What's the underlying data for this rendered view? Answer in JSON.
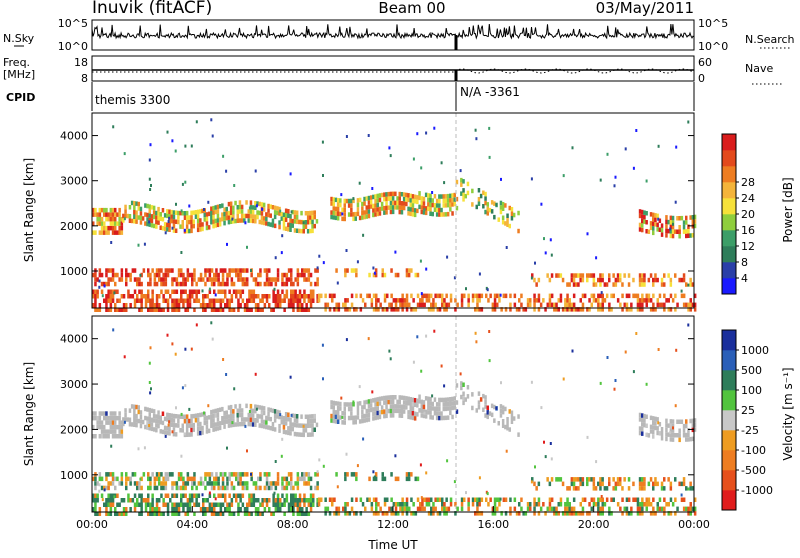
{
  "header": {
    "station": "Inuvik (fitACF)",
    "beam": "Beam 00",
    "date": "03/May/2011"
  },
  "top_panels": {
    "nsky_label": "N.Sky",
    "nsky_ticks": [
      "10^5",
      "10^0"
    ],
    "nsearch_label": "N.Search",
    "freq_label_1": "Freq.",
    "freq_label_2": "[MHz]",
    "freq_ticks": [
      "18",
      "8"
    ],
    "nave_label": "Nave",
    "nave_ticks": [
      "60",
      "0"
    ],
    "cpid_label": "CPID",
    "cpid_segments": [
      "themis 3300",
      "N/A -3361"
    ]
  },
  "colors": {
    "power_scale": [
      "#1a1aff",
      "#2a3fa8",
      "#2e7d5a",
      "#3c9e68",
      "#8fce3d",
      "#f6e13a",
      "#f4b43a",
      "#ee7d21",
      "#e34a1c",
      "#d91c1c"
    ],
    "velocity_scale": [
      "#1a2f9c",
      "#2a5fb8",
      "#2e7d5a",
      "#52c43e",
      "#c8c8c8",
      "#c8c8c8",
      "#ee9c21",
      "#ee7d21",
      "#e6501c",
      "#e01c1c"
    ],
    "ground_scatter": "#b8b8b8"
  },
  "chart_data": [
    {
      "type": "heatmap",
      "name": "power",
      "ylabel": "Slant Range [km]",
      "xlabel": "",
      "yticks": [
        "1000",
        "2000",
        "3000",
        "4000"
      ],
      "colorbar_label": "Power [dB]",
      "colorbar_ticks": [
        "4",
        "8",
        "12",
        "16",
        "20",
        "24",
        "28"
      ],
      "ylim": [
        180,
        4500
      ],
      "xlim": [
        0,
        24
      ]
    },
    {
      "type": "heatmap",
      "name": "velocity",
      "ylabel": "Slant Range [km]",
      "xlabel": "Time UT",
      "yticks": [
        "1000",
        "2000",
        "3000",
        "4000"
      ],
      "xticks": [
        "00:00",
        "04:00",
        "08:00",
        "12:00",
        "16:00",
        "20:00",
        "00:00"
      ],
      "colorbar_label": "Velocity [m s⁻¹]",
      "colorbar_ticks": [
        "1000",
        "500",
        "100",
        "25",
        "-25",
        "-100",
        "-500",
        "-1000"
      ],
      "ylim": [
        180,
        4500
      ],
      "xlim": [
        0,
        24
      ]
    }
  ]
}
